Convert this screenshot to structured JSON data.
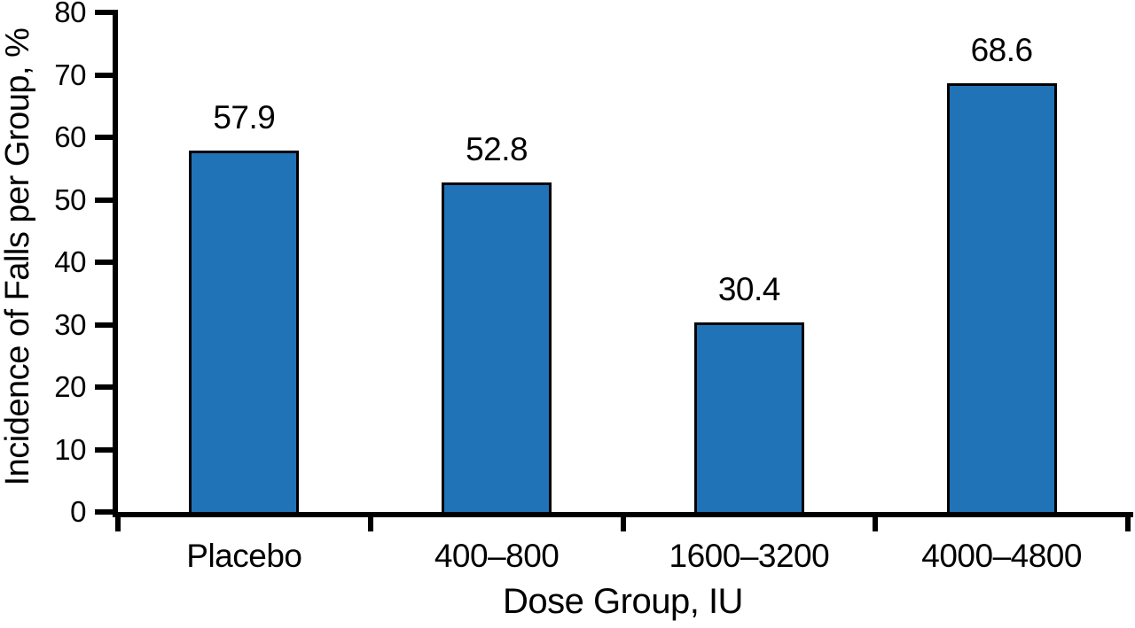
{
  "chart_data": {
    "type": "bar",
    "title": "",
    "categories": [
      "Placebo",
      "400–800",
      "1600–3200",
      "4000–4800"
    ],
    "values": [
      57.9,
      52.8,
      30.4,
      68.6
    ],
    "value_labels": [
      "57.9",
      "52.8",
      "30.4",
      "68.6"
    ],
    "xlabel": "Dose Group, IU",
    "ylabel": "Incidence of Falls per Group, %",
    "ylim": [
      0,
      80
    ],
    "yticks": [
      0,
      10,
      20,
      30,
      40,
      50,
      60,
      70,
      80
    ],
    "ytick_labels": [
      "0",
      "10",
      "20",
      "30",
      "40",
      "50",
      "60",
      "70",
      "80"
    ],
    "grid": false,
    "legend": "none",
    "bar_color": "#2173B8",
    "bar_border_color": "#000000",
    "axis_color": "#000000",
    "text_color": "#000000",
    "background_color": "#FFFFFF"
  }
}
